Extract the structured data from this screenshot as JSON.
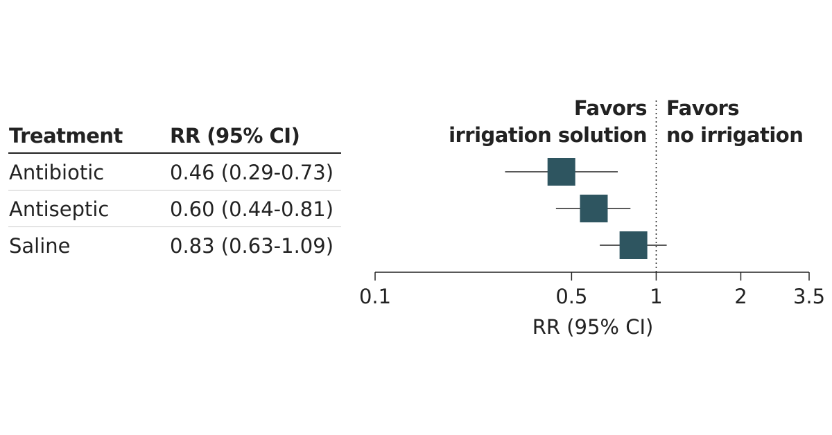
{
  "table": {
    "headers": [
      "Treatment",
      "RR (95% CI)"
    ],
    "rows": [
      {
        "treatment": "Antibiotic",
        "rr_text": "0.46 (0.29-0.73)"
      },
      {
        "treatment": "Antiseptic",
        "rr_text": "0.60 (0.44-0.81)"
      },
      {
        "treatment": "Saline",
        "rr_text": "0.83 (0.63-1.09)"
      }
    ]
  },
  "favors": {
    "left_line1": "Favors",
    "left_line2": "irrigation solution",
    "right_line1": "Favors",
    "right_line2": "no irrigation"
  },
  "colors": {
    "marker": "#2e5560",
    "text": "#222222",
    "rule": "#222222"
  },
  "chart_data": {
    "type": "forest",
    "scale": "log",
    "xlim": [
      0.1,
      3.5
    ],
    "xlabel": "RR (95% CI)",
    "ticks": [
      0.1,
      0.5,
      1,
      2,
      3.5
    ],
    "tick_labels": [
      "0.1",
      "0.5",
      "1",
      "2",
      "3.5"
    ],
    "reference_line": 1,
    "series": [
      {
        "label": "Antibiotic",
        "estimate": 0.46,
        "lower": 0.29,
        "upper": 0.73
      },
      {
        "label": "Antiseptic",
        "estimate": 0.6,
        "lower": 0.44,
        "upper": 0.81
      },
      {
        "label": "Saline",
        "estimate": 0.83,
        "lower": 0.63,
        "upper": 1.09
      }
    ]
  }
}
